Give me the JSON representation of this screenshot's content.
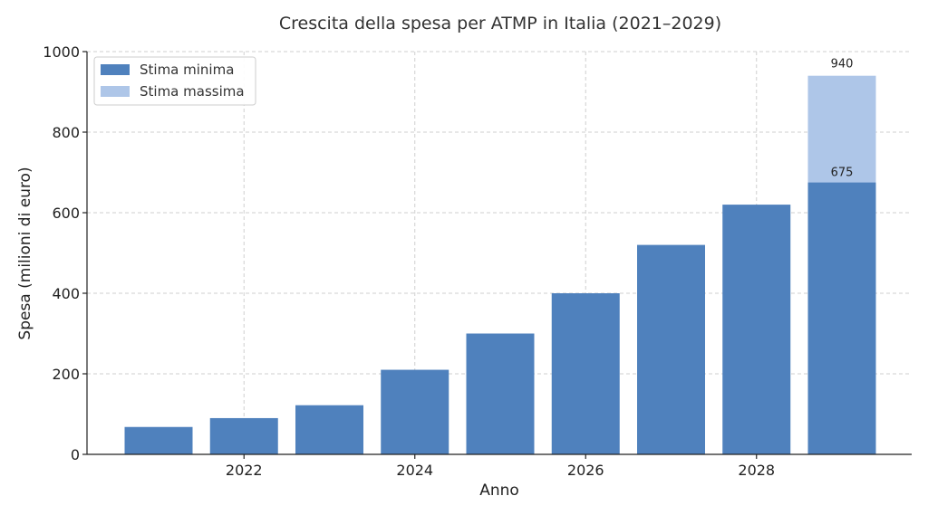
{
  "chart_data": {
    "type": "bar",
    "title": "Crescita della spesa per ATMP in Italia (2021–2029)",
    "xlabel": "Anno",
    "ylabel": "Spesa (milioni di euro)",
    "ylim": [
      0,
      1000
    ],
    "yticks": [
      "0",
      "200",
      "400",
      "600",
      "800",
      "1000"
    ],
    "xticks": [
      "2022",
      "2024",
      "2026",
      "2028"
    ],
    "categories": [
      "2021",
      "2022",
      "2023",
      "2024",
      "2025",
      "2026",
      "2027",
      "2028",
      "2029"
    ],
    "series": [
      {
        "name": "Stima minima",
        "color": "#4f81bd",
        "values": [
          68,
          90,
          122,
          210,
          300,
          400,
          520,
          620,
          675
        ]
      },
      {
        "name": "Stima massima",
        "color": "#aec6e8",
        "values": [
          null,
          null,
          null,
          null,
          null,
          null,
          null,
          null,
          940
        ]
      }
    ],
    "data_labels": [
      "940",
      "675"
    ],
    "grid": true,
    "legend_position": "top-left"
  }
}
